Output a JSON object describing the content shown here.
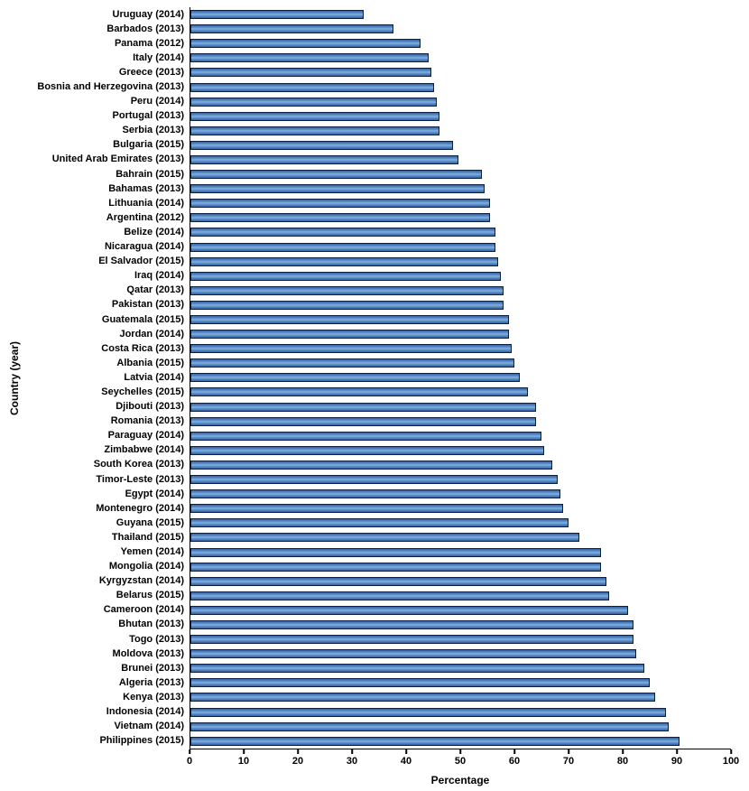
{
  "chart_data": {
    "type": "bar",
    "orientation": "horizontal",
    "title": "",
    "xlabel": "Percentage",
    "ylabel": "Country (year)",
    "xlim": [
      0,
      100
    ],
    "xticks": [
      0,
      10,
      20,
      30,
      40,
      50,
      60,
      70,
      80,
      90,
      100
    ],
    "grid": false,
    "legend": false,
    "bar_color": "#4a7dbd",
    "bar_border_color": "#0d1f3c",
    "categories": [
      "Uruguay (2014)",
      "Barbados (2013)",
      "Panama (2012)",
      "Italy (2014)",
      "Greece (2013)",
      "Bosnia and Herzegovina (2013)",
      "Peru (2014)",
      "Portugal (2013)",
      "Serbia (2013)",
      "Bulgaria (2015)",
      "United Arab Emirates (2013)",
      "Bahrain (2015)",
      "Bahamas (2013)",
      "Lithuania (2014)",
      "Argentina (2012)",
      "Belize (2014)",
      "Nicaragua (2014)",
      "El Salvador (2015)",
      "Iraq (2014)",
      "Qatar (2013)",
      "Pakistan (2013)",
      "Guatemala (2015)",
      "Jordan (2014)",
      "Costa Rica (2013)",
      "Albania (2015)",
      "Latvia (2014)",
      "Seychelles (2015)",
      "Djibouti (2013)",
      "Romania (2013)",
      "Paraguay (2014)",
      "Zimbabwe (2014)",
      "South Korea (2013)",
      "Timor-Leste (2013)",
      "Egypt (2014)",
      "Montenegro (2014)",
      "Guyana (2015)",
      "Thailand (2015)",
      "Yemen (2014)",
      "Mongolia (2014)",
      "Kyrgyzstan (2014)",
      "Belarus (2015)",
      "Cameroon (2014)",
      "Bhutan (2013)",
      "Togo (2013)",
      "Moldova (2013)",
      "Brunei (2013)",
      "Algeria (2013)",
      "Kenya (2013)",
      "Indonesia (2014)",
      "Vietnam (2014)",
      "Philippines (2015)"
    ],
    "values": [
      32,
      37.5,
      42.5,
      44,
      44.5,
      45,
      45.5,
      46,
      46,
      48.5,
      49.5,
      54,
      54.5,
      55.5,
      55.5,
      56.5,
      56.5,
      57,
      57.5,
      58,
      58,
      59,
      59,
      59.5,
      60,
      61,
      62.5,
      64,
      64,
      65,
      65.5,
      67,
      68,
      68.5,
      69,
      70,
      72,
      76,
      76,
      77,
      77.5,
      81,
      82,
      82,
      82.5,
      84,
      85,
      86,
      88,
      88.5,
      90.5
    ]
  }
}
